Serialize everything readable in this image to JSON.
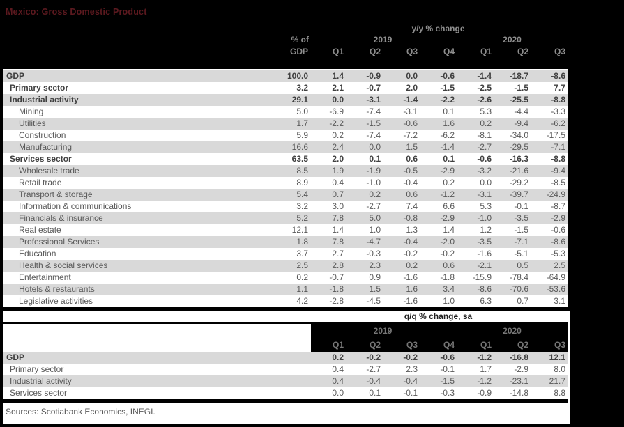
{
  "title": "Mexico: Gross Domestic Product",
  "colors": {
    "page_background": "#000000",
    "title_red": "#5c191f",
    "row_shading": "#d9d9d9",
    "header_text_gray": "#8e8e8e",
    "body_text_gray": "#595959"
  },
  "yy_table": {
    "section_title": "y/y % change",
    "pct_header_line1": "% of",
    "pct_header_line2": "GDP",
    "year_groups": [
      {
        "year": "2019",
        "quarters": [
          "Q1",
          "Q2",
          "Q3",
          "Q4"
        ]
      },
      {
        "year": "2020",
        "quarters": [
          "Q1",
          "Q2",
          "Q3"
        ]
      }
    ],
    "rows": [
      {
        "label": "GDP",
        "indent": 0,
        "bold": true,
        "pct_gdp": "100.0",
        "values": [
          "1.4",
          "-0.9",
          "0.0",
          "-0.6",
          "-1.4",
          "-18.7",
          "-8.6"
        ]
      },
      {
        "label": "Primary sector",
        "indent": 1,
        "bold": true,
        "pct_gdp": "3.2",
        "values": [
          "2.1",
          "-0.7",
          "2.0",
          "-1.5",
          "-2.5",
          "-1.5",
          "7.7"
        ]
      },
      {
        "label": "Industrial activity",
        "indent": 1,
        "bold": true,
        "pct_gdp": "29.1",
        "values": [
          "0.0",
          "-3.1",
          "-1.4",
          "-2.2",
          "-2.6",
          "-25.5",
          "-8.8"
        ]
      },
      {
        "label": "Mining",
        "indent": 2,
        "bold": false,
        "pct_gdp": "5.0",
        "values": [
          "-6.9",
          "-7.4",
          "-3.1",
          "0.1",
          "5.3",
          "-4.4",
          "-3.3"
        ]
      },
      {
        "label": "Utilities",
        "indent": 2,
        "bold": false,
        "pct_gdp": "1.7",
        "values": [
          "-2.2",
          "-1.5",
          "-0.6",
          "1.6",
          "0.2",
          "-9.4",
          "-6.2"
        ]
      },
      {
        "label": "Construction",
        "indent": 2,
        "bold": false,
        "pct_gdp": "5.9",
        "values": [
          "0.2",
          "-7.4",
          "-7.2",
          "-6.2",
          "-8.1",
          "-34.0",
          "-17.5"
        ]
      },
      {
        "label": "Manufacturing",
        "indent": 2,
        "bold": false,
        "pct_gdp": "16.6",
        "values": [
          "2.4",
          "0.0",
          "1.5",
          "-1.4",
          "-2.7",
          "-29.5",
          "-7.1"
        ]
      },
      {
        "label": "Services sector",
        "indent": 1,
        "bold": true,
        "pct_gdp": "63.5",
        "values": [
          "2.0",
          "0.1",
          "0.6",
          "0.1",
          "-0.6",
          "-16.3",
          "-8.8"
        ]
      },
      {
        "label": "Wholesale trade",
        "indent": 2,
        "bold": false,
        "pct_gdp": "8.5",
        "values": [
          "1.9",
          "-1.9",
          "-0.5",
          "-2.9",
          "-3.2",
          "-21.6",
          "-9.4"
        ]
      },
      {
        "label": "Retail trade",
        "indent": 2,
        "bold": false,
        "pct_gdp": "8.9",
        "values": [
          "0.4",
          "-1.0",
          "-0.4",
          "0.2",
          "0.0",
          "-29.2",
          "-8.5"
        ]
      },
      {
        "label": "Transport & storage",
        "indent": 2,
        "bold": false,
        "pct_gdp": "5.4",
        "values": [
          "0.7",
          "0.2",
          "0.6",
          "-1.2",
          "-3.1",
          "-39.7",
          "-24.9"
        ]
      },
      {
        "label": "Information & communications",
        "indent": 2,
        "bold": false,
        "pct_gdp": "3.2",
        "values": [
          "3.0",
          "-2.7",
          "7.4",
          "6.6",
          "5.3",
          "-0.1",
          "-8.7"
        ]
      },
      {
        "label": "Financials & insurance",
        "indent": 2,
        "bold": false,
        "pct_gdp": "5.2",
        "values": [
          "7.8",
          "5.0",
          "-0.8",
          "-2.9",
          "-1.0",
          "-3.5",
          "-2.9"
        ]
      },
      {
        "label": "Real estate",
        "indent": 2,
        "bold": false,
        "pct_gdp": "12.1",
        "values": [
          "1.4",
          "1.0",
          "1.3",
          "1.4",
          "1.2",
          "-1.5",
          "-0.6"
        ]
      },
      {
        "label": "Professional Services",
        "indent": 2,
        "bold": false,
        "pct_gdp": "1.8",
        "values": [
          "7.8",
          "-4.7",
          "-0.4",
          "-2.0",
          "-3.5",
          "-7.1",
          "-8.6"
        ]
      },
      {
        "label": "Education",
        "indent": 2,
        "bold": false,
        "pct_gdp": "3.7",
        "values": [
          "2.7",
          "-0.3",
          "-0.2",
          "-0.2",
          "-1.6",
          "-5.1",
          "-5.3"
        ]
      },
      {
        "label": "Health & social services",
        "indent": 2,
        "bold": false,
        "pct_gdp": "2.5",
        "values": [
          "2.8",
          "2.3",
          "0.2",
          "0.6",
          "-2.1",
          "0.5",
          "2.5"
        ]
      },
      {
        "label": "Entertainment",
        "indent": 2,
        "bold": false,
        "pct_gdp": "0.2",
        "values": [
          "-0.7",
          "0.9",
          "-1.6",
          "-1.8",
          "-15.9",
          "-78.4",
          "-64.9"
        ]
      },
      {
        "label": "Hotels & restaurants",
        "indent": 2,
        "bold": false,
        "pct_gdp": "1.1",
        "values": [
          "-1.8",
          "1.5",
          "1.6",
          "3.4",
          "-8.6",
          "-70.6",
          "-53.6"
        ]
      },
      {
        "label": "Legislative activities",
        "indent": 2,
        "bold": false,
        "pct_gdp": "4.2",
        "values": [
          "-2.8",
          "-4.5",
          "-1.6",
          "1.0",
          "6.3",
          "0.7",
          "3.1"
        ]
      }
    ]
  },
  "qq_table": {
    "section_title": "q/q % change, sa",
    "year_groups": [
      {
        "year": "2019",
        "quarters": [
          "Q1",
          "Q2",
          "Q3",
          "Q4"
        ]
      },
      {
        "year": "2020",
        "quarters": [
          "Q1",
          "Q2",
          "Q3"
        ]
      }
    ],
    "rows": [
      {
        "label": "GDP",
        "indent": 0,
        "bold": true,
        "values": [
          "0.2",
          "-0.2",
          "-0.2",
          "-0.6",
          "-1.2",
          "-16.8",
          "12.1"
        ]
      },
      {
        "label": "Primary sector",
        "indent": 1,
        "bold": false,
        "values": [
          "0.4",
          "-2.7",
          "2.3",
          "-0.1",
          "1.7",
          "-2.9",
          "8.0"
        ]
      },
      {
        "label": "Industrial activity",
        "indent": 1,
        "bold": false,
        "values": [
          "0.4",
          "-0.4",
          "-0.4",
          "-1.5",
          "-1.2",
          "-23.1",
          "21.7"
        ]
      },
      {
        "label": "Services sector",
        "indent": 1,
        "bold": false,
        "values": [
          "0.0",
          "0.1",
          "-0.1",
          "-0.3",
          "-0.9",
          "-14.8",
          "8.8"
        ]
      }
    ]
  },
  "footer": "Sources: Scotiabank Economics, INEGI."
}
